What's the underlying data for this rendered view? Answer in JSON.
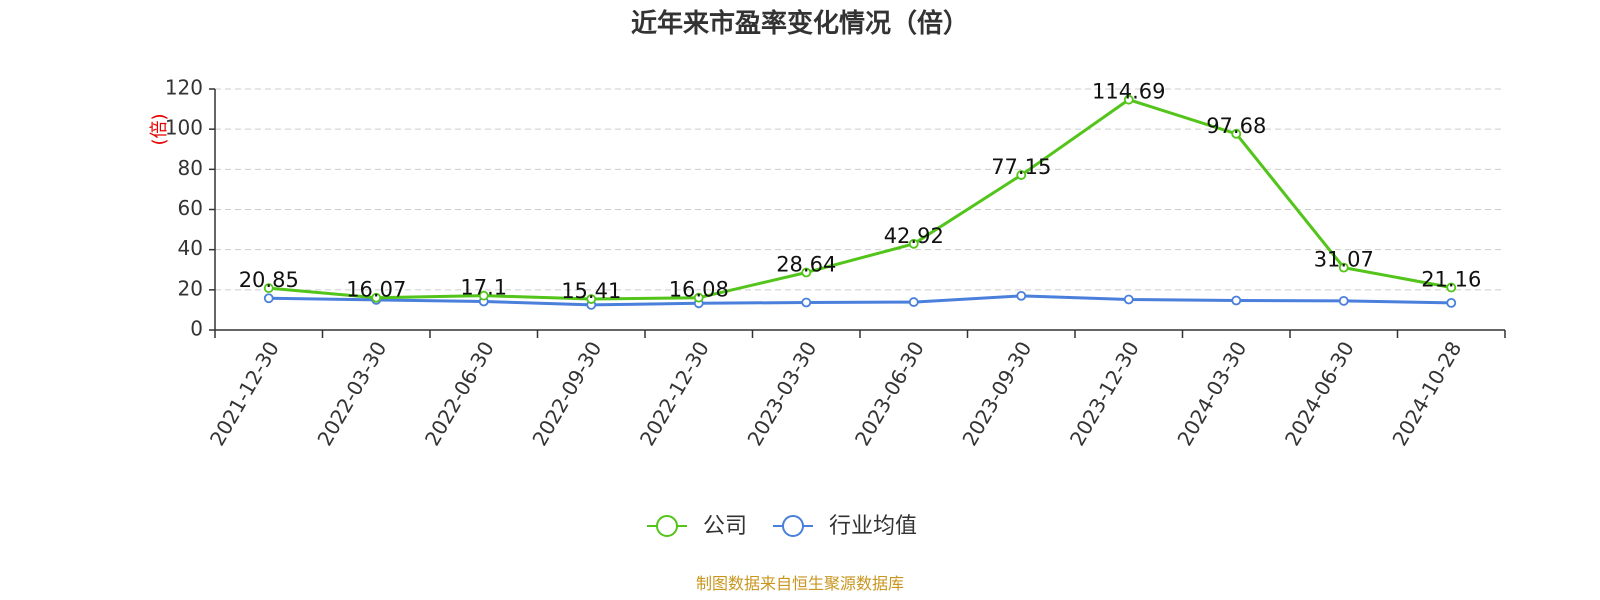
{
  "chart_data": {
    "type": "line",
    "title": "近年来市盈率变化情况（倍）",
    "ylabel": "(倍)",
    "xlabel": "",
    "categories": [
      "2021-12-30",
      "2022-03-30",
      "2022-06-30",
      "2022-09-30",
      "2022-12-30",
      "2023-03-30",
      "2023-06-30",
      "2023-09-30",
      "2023-12-30",
      "2024-03-30",
      "2024-06-30",
      "2024-10-28"
    ],
    "ylim": [
      0,
      120
    ],
    "yticks": [
      0,
      20,
      40,
      60,
      80,
      100,
      120
    ],
    "grid": true,
    "legend_position": "bottom",
    "series": [
      {
        "name": "公司",
        "color": "#52c41a",
        "values": [
          20.85,
          16.07,
          17.1,
          15.41,
          16.08,
          28.64,
          42.92,
          77.15,
          114.69,
          97.68,
          31.07,
          21.16
        ],
        "labels": [
          "20.85",
          "16.07",
          "17.1",
          "15.41",
          "16.08",
          "28.64",
          "42.92",
          "77.15",
          "114.69",
          "97.68",
          "31.07",
          "21.16"
        ]
      },
      {
        "name": "行业均值",
        "color": "#4a7fdc",
        "values": [
          15.8,
          15.0,
          14.2,
          12.5,
          13.3,
          13.7,
          13.9,
          17.0,
          15.2,
          14.7,
          14.5,
          13.5
        ]
      }
    ]
  },
  "source_note": "制图数据来自恒生聚源数据库"
}
